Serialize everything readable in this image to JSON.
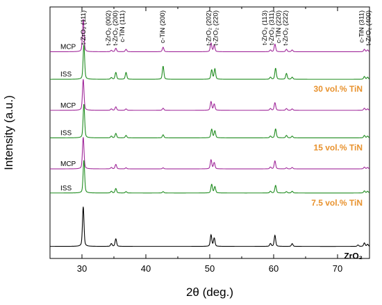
{
  "chart_data": {
    "type": "line",
    "xlabel": "2θ (deg.)",
    "ylabel": "Intensity (a.u.)",
    "xlim": [
      25,
      75
    ],
    "xticks": [
      30,
      40,
      50,
      60,
      70
    ],
    "colors": {
      "MCP": "#a0289a",
      "ISS": "#1f8c1f",
      "ZrO2": "#000000",
      "group": "#e8922e"
    },
    "peak_labels": [
      {
        "x": 30.2,
        "lines": [
          "t-ZrO₂ (111)"
        ]
      },
      {
        "x": 35.2,
        "lines": [
          "t-ZrO₂ (002)",
          "t-ZrO₂ (200)",
          "c-TiN (111)"
        ]
      },
      {
        "x": 42.6,
        "lines": [
          "c-TiN (200)"
        ]
      },
      {
        "x": 50.4,
        "lines": [
          "t-ZrO₂ (202)",
          "t-ZrO₂ (220)"
        ]
      },
      {
        "x": 60.2,
        "lines": [
          "t-ZrO₂ (113)",
          "t-ZrO₂ (311)",
          "c-TiN (220)",
          "t-ZrO₂ (222)"
        ]
      },
      {
        "x": 74.3,
        "lines": [
          "c-TiN (311)",
          "t-ZrO₂ (400)"
        ]
      }
    ],
    "group_labels": [
      {
        "text": "30 vol.% TiN",
        "baseline": 5.2
      },
      {
        "text": "15 vol.% TiN",
        "baseline": 3.5
      },
      {
        "text": "7.5 vol.% TiN",
        "baseline": 1.9
      }
    ],
    "series": [
      {
        "name": "MCP",
        "group": "30 vol.% TiN",
        "color": "MCP",
        "baseline": 6.0,
        "peaks": [
          [
            30.2,
            0.95
          ],
          [
            34.6,
            0.04
          ],
          [
            35.3,
            0.1
          ],
          [
            36.9,
            0.07
          ],
          [
            42.7,
            0.13
          ],
          [
            50.2,
            0.25
          ],
          [
            50.7,
            0.18
          ],
          [
            59.5,
            0.05
          ],
          [
            60.2,
            0.22
          ],
          [
            62.0,
            0.07
          ],
          [
            62.9,
            0.05
          ],
          [
            74.2,
            0.07
          ],
          [
            74.7,
            0.05
          ]
        ]
      },
      {
        "name": "ISS",
        "group": "30 vol.% TiN",
        "color": "ISS",
        "baseline": 5.2,
        "peaks": [
          [
            30.3,
            1.0
          ],
          [
            34.6,
            0.05
          ],
          [
            35.3,
            0.2
          ],
          [
            36.9,
            0.2
          ],
          [
            42.7,
            0.38
          ],
          [
            50.3,
            0.27
          ],
          [
            50.8,
            0.3
          ],
          [
            59.5,
            0.06
          ],
          [
            60.3,
            0.32
          ],
          [
            62.0,
            0.17
          ],
          [
            62.9,
            0.06
          ],
          [
            74.2,
            0.08
          ],
          [
            74.7,
            0.06
          ]
        ]
      },
      {
        "name": "MCP",
        "group": "15 vol.% TiN",
        "color": "MCP",
        "baseline": 4.3,
        "peaks": [
          [
            30.2,
            0.9
          ],
          [
            34.6,
            0.04
          ],
          [
            35.3,
            0.1
          ],
          [
            36.9,
            0.04
          ],
          [
            42.7,
            0.06
          ],
          [
            50.2,
            0.25
          ],
          [
            50.7,
            0.18
          ],
          [
            59.5,
            0.05
          ],
          [
            60.2,
            0.22
          ],
          [
            62.0,
            0.05
          ],
          [
            62.9,
            0.04
          ],
          [
            74.2,
            0.06
          ],
          [
            74.7,
            0.04
          ]
        ]
      },
      {
        "name": "ISS",
        "group": "15 vol.% TiN",
        "color": "ISS",
        "baseline": 3.5,
        "peaks": [
          [
            30.3,
            0.98
          ],
          [
            34.6,
            0.05
          ],
          [
            35.3,
            0.13
          ],
          [
            36.9,
            0.07
          ],
          [
            42.7,
            0.09
          ],
          [
            50.3,
            0.25
          ],
          [
            50.8,
            0.2
          ],
          [
            59.5,
            0.05
          ],
          [
            60.3,
            0.26
          ],
          [
            62.0,
            0.07
          ],
          [
            62.9,
            0.05
          ],
          [
            74.2,
            0.07
          ],
          [
            74.7,
            0.05
          ]
        ]
      },
      {
        "name": "MCP",
        "group": "7.5 vol.% TiN",
        "color": "MCP",
        "baseline": 2.6,
        "peaks": [
          [
            30.2,
            0.92
          ],
          [
            34.6,
            0.04
          ],
          [
            35.3,
            0.13
          ],
          [
            36.9,
            0.03
          ],
          [
            42.7,
            0.03
          ],
          [
            50.2,
            0.26
          ],
          [
            50.7,
            0.18
          ],
          [
            59.5,
            0.05
          ],
          [
            60.2,
            0.23
          ],
          [
            62.0,
            0.03
          ],
          [
            62.9,
            0.04
          ],
          [
            74.2,
            0.05
          ],
          [
            74.7,
            0.04
          ]
        ]
      },
      {
        "name": "ISS",
        "group": "7.5 vol.% TiN",
        "color": "ISS",
        "baseline": 1.9,
        "peaks": [
          [
            30.3,
            0.95
          ],
          [
            34.6,
            0.05
          ],
          [
            35.3,
            0.13
          ],
          [
            36.9,
            0.04
          ],
          [
            42.7,
            0.04
          ],
          [
            50.3,
            0.25
          ],
          [
            50.8,
            0.18
          ],
          [
            59.5,
            0.05
          ],
          [
            60.3,
            0.22
          ],
          [
            62.0,
            0.04
          ],
          [
            62.9,
            0.05
          ],
          [
            74.2,
            0.06
          ],
          [
            74.7,
            0.05
          ]
        ]
      },
      {
        "name": "ZrO₂",
        "group": "ZrO₂",
        "color": "ZrO2",
        "baseline": 0.35,
        "peaks": [
          [
            30.2,
            1.15
          ],
          [
            34.6,
            0.08
          ],
          [
            35.3,
            0.22
          ],
          [
            50.2,
            0.33
          ],
          [
            50.7,
            0.24
          ],
          [
            59.5,
            0.08
          ],
          [
            60.2,
            0.32
          ],
          [
            62.9,
            0.08
          ],
          [
            73.2,
            0.04
          ],
          [
            74.2,
            0.1
          ],
          [
            74.7,
            0.06
          ]
        ]
      }
    ]
  }
}
